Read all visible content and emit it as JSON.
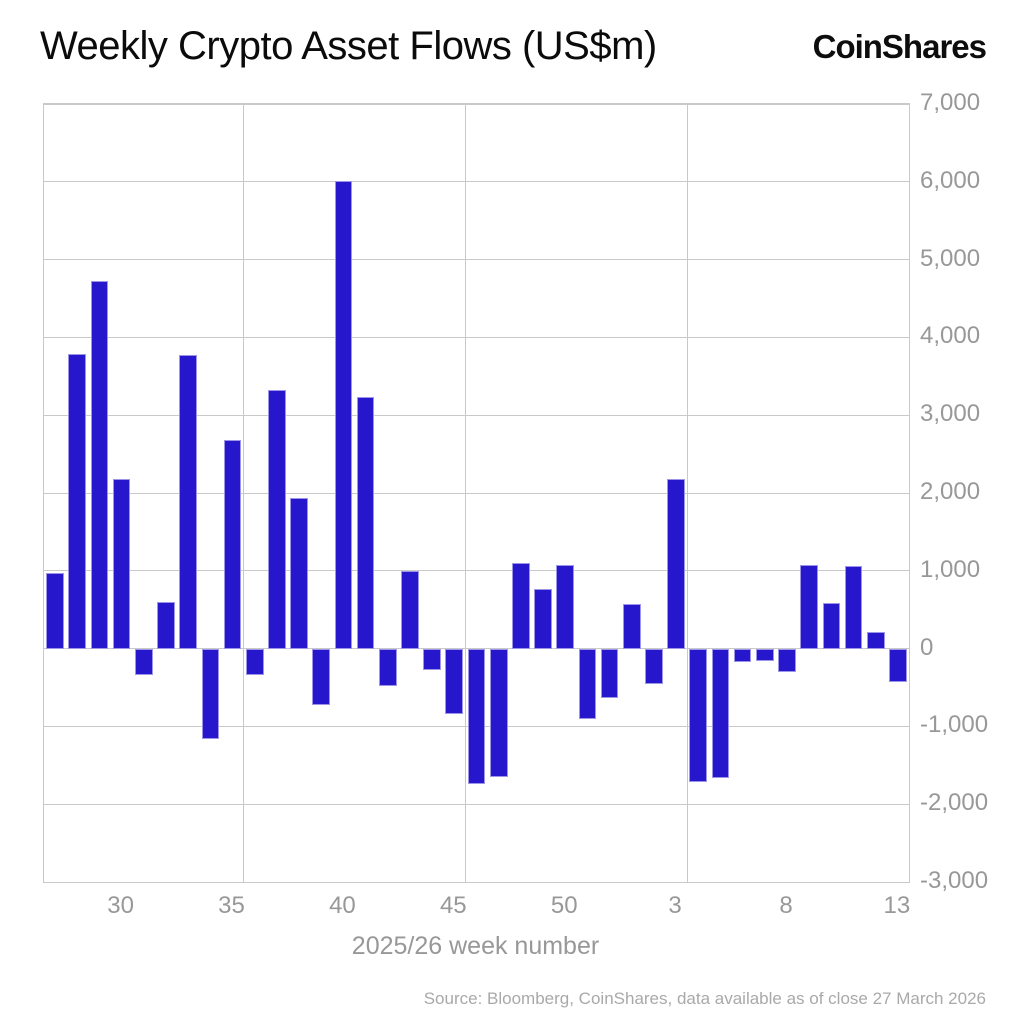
{
  "header": {
    "title": "Weekly Crypto Asset Flows (US$m)",
    "brand": "CoinShares"
  },
  "chart_data": {
    "type": "bar",
    "title": "Weekly Crypto Asset Flows (US$m)",
    "xlabel": "2025/26 week number",
    "ylabel": "",
    "ylim": [
      -3000,
      7000
    ],
    "grid": true,
    "legend": false,
    "bar_color": "#2617CD",
    "categories": [
      "27",
      "28",
      "29",
      "30",
      "31",
      "32",
      "33",
      "34",
      "35",
      "36",
      "37",
      "38",
      "39",
      "40",
      "41",
      "42",
      "43",
      "44",
      "45",
      "46",
      "47",
      "48",
      "49",
      "50",
      "51",
      "52",
      "1",
      "2",
      "3",
      "4",
      "5",
      "6",
      "7",
      "8",
      "9",
      "10",
      "11",
      "12",
      "13"
    ],
    "values": [
      970,
      3790,
      4730,
      2180,
      -340,
      600,
      3780,
      -1160,
      2680,
      -340,
      3330,
      1930,
      -720,
      6010,
      3230,
      -480,
      1000,
      -280,
      -840,
      -1745,
      -1655,
      1100,
      770,
      1075,
      -900,
      -640,
      570,
      -450,
      2180,
      -1710,
      -1660,
      -170,
      -160,
      -300,
      1075,
      590,
      1060,
      215,
      -430
    ],
    "y_ticks": [
      {
        "label": "7,000",
        "value": 7000
      },
      {
        "label": "6,000",
        "value": 6000
      },
      {
        "label": "5,000",
        "value": 5000
      },
      {
        "label": "4,000",
        "value": 4000
      },
      {
        "label": "3,000",
        "value": 3000
      },
      {
        "label": "2,000",
        "value": 2000
      },
      {
        "label": "1,000",
        "value": 1000
      },
      {
        "label": "0",
        "value": 0
      },
      {
        "label": "-1,000",
        "value": -1000
      },
      {
        "label": "-2,000",
        "value": -2000
      },
      {
        "label": "-3,000",
        "value": -3000
      }
    ],
    "x_ticks": [
      {
        "label": "30",
        "slot": 3
      },
      {
        "label": "35",
        "slot": 8
      },
      {
        "label": "40",
        "slot": 13
      },
      {
        "label": "45",
        "slot": 18
      },
      {
        "label": "50",
        "slot": 23
      },
      {
        "label": "3",
        "slot": 28
      },
      {
        "label": "8",
        "slot": 33
      },
      {
        "label": "13",
        "slot": 38
      }
    ],
    "v_grid_slot_boundaries": [
      9,
      19,
      29
    ]
  },
  "footer": {
    "source": "Source: Bloomberg, CoinShares, data available as of close 27 March 2026"
  }
}
